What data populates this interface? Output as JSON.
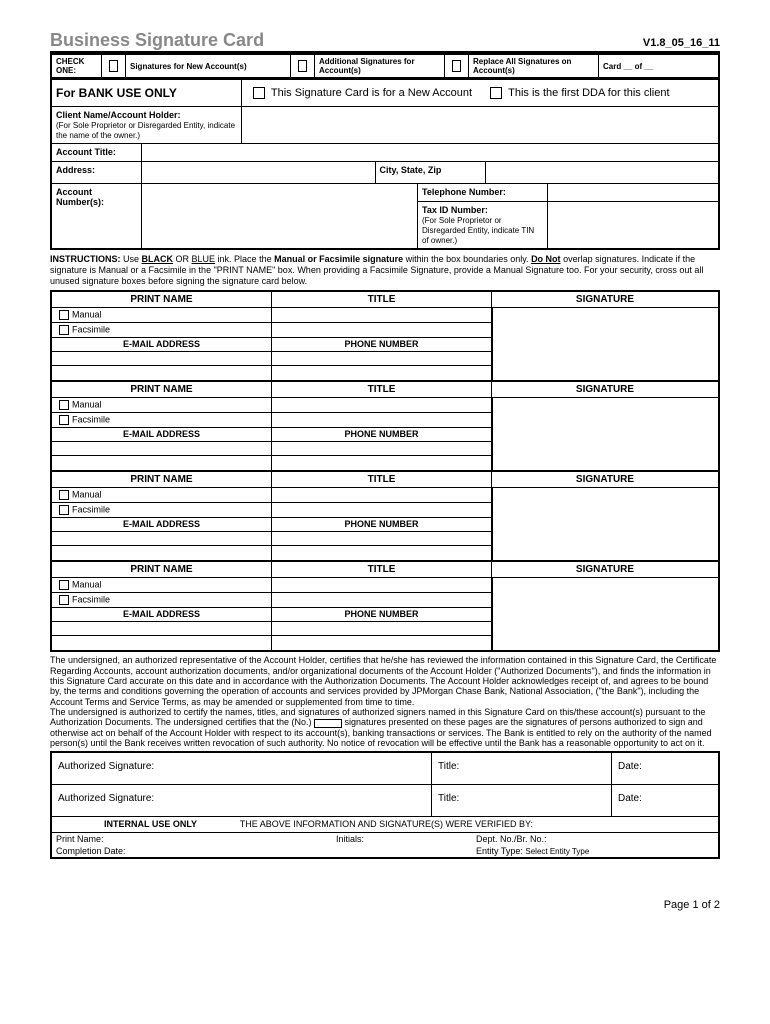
{
  "header": {
    "title": "Business Signature Card",
    "version": "V1.8_05_16_11"
  },
  "checkRow": {
    "label": "CHECK ONE:",
    "opt1": "Signatures for New Account(s)",
    "opt2": "Additional Signatures for Account(s)",
    "opt3": "Replace All Signatures on Account(s)",
    "cardOf": "Card __ of __"
  },
  "bankUse": {
    "label": "For BANK USE ONLY",
    "opt1": "This Signature Card is for a New Account",
    "opt2": "This is the first DDA for this client"
  },
  "client": {
    "nameLabel": "Client Name/Account Holder:",
    "nameSub": "(For Sole Proprietor or Disregarded Entity, indicate the name of the owner.)",
    "acctTitle": "Account Title:",
    "address": "Address:",
    "cityStateZip": "City, State, Zip",
    "acctNumbers": "Account Number(s):",
    "telephone": "Telephone Number:",
    "taxId": "Tax ID Number:",
    "taxIdSub": "(For Sole Proprietor or Disregarded Entity, indicate TIN of owner.)"
  },
  "instructions": {
    "prefix": "INSTRUCTIONS:",
    "text1": " Use ",
    "black": "BLACK",
    "or": " OR ",
    "blue": "BLUE",
    "text2": " ink.  Place the ",
    "manFac": "Manual or Facsimile signature",
    "text3": " within the box boundaries only.  ",
    "doNot": "Do Not",
    "text4": " overlap signatures.  Indicate if the signature is Manual or a Facsimile in the \"PRINT NAME\" box.  When providing a Facsimile Signature, provide a Manual Signature too.  For your security, cross out all unused signature boxes before signing the signature card below."
  },
  "sigCols": {
    "printName": "PRINT NAME",
    "title": "TITLE",
    "signature": "SIGNATURE",
    "email": "E-MAIL ADDRESS",
    "phone": "PHONE NUMBER",
    "manual": "Manual",
    "facsimile": "Facsimile"
  },
  "legal": {
    "p1": "The undersigned, an authorized representative of the Account Holder, certifies that he/she has reviewed the information contained in this Signature Card, the Certificate Regarding Accounts, account authorization documents, and/or organizational documents of the Account Holder (\"Authorized Documents\"), and finds the information in this Signature Card accurate on this date and in accordance with the Authorization Documents.  The Account Holder acknowledges receipt of, and agrees to be bound by, the terms and conditions governing the operation of accounts and services provided by JPMorgan Chase Bank, National Association, (\"the Bank\"), including the Account Terms and Service Terms, as may be amended or supplemented from time to time.",
    "p2a": "The undersigned is authorized to certify the names, titles, and signatures of authorized signers named in this Signature Card on this/these account(s) pursuant to the Authorization Documents.  The undersigned certifies that the (No.) ",
    "p2b": " signatures presented on these pages are the signatures of persons authorized to sign and otherwise act on behalf of the Account Holder with respect to its account(s), banking transactions or services.  The Bank is entitled to rely on the authority of the named person(s) until the Bank receives written revocation of such authority. No notice of revocation will be effective until the Bank has a reasonable opportunity to act on it."
  },
  "auth": {
    "sigLabel": "Authorized Signature:",
    "titleLabel": "Title:",
    "dateLabel": "Date:"
  },
  "internal": {
    "header": "INTERNAL USE ONLY",
    "verified": "THE ABOVE INFORMATION AND SIGNATURE(S) WERE VERIFIED BY:",
    "printName": "Print Name:",
    "initials": "Initials:",
    "deptNo": "Dept. No./Br. No.:",
    "completionDate": "Completion Date:",
    "entityType": "Entity Type:",
    "entityTypeVal": "Select Entity Type"
  },
  "footer": "Page 1 of 2"
}
